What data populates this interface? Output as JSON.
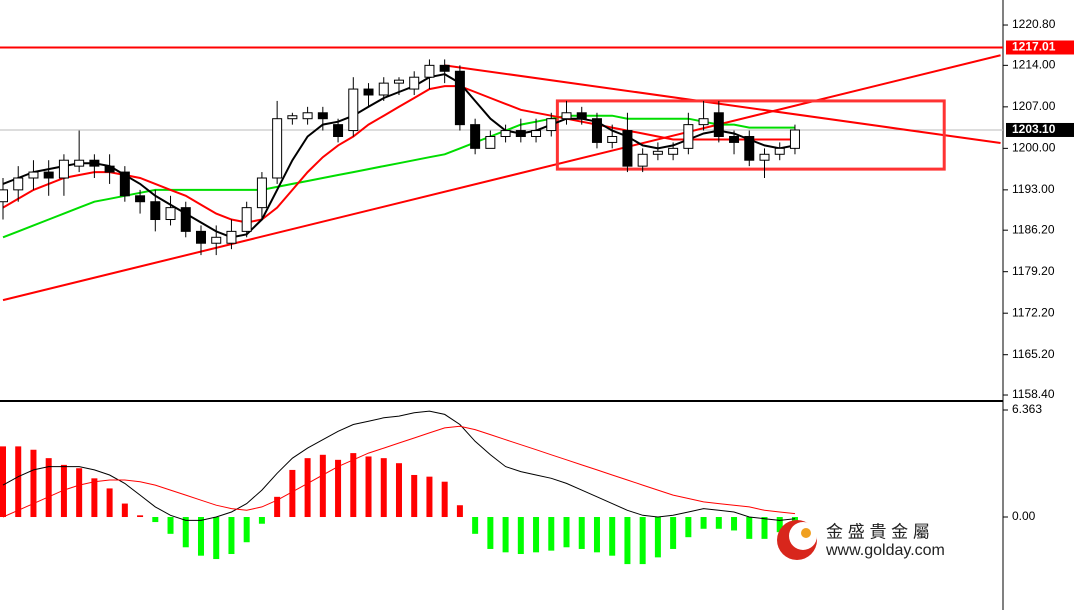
{
  "chart_data": [
    {
      "type": "candlestick",
      "open": [
        1191,
        1193,
        1195,
        1196,
        1195,
        1197,
        1198,
        1197,
        1196,
        1192,
        1191,
        1188,
        1190,
        1186,
        1184,
        1184,
        1186,
        1190,
        1195,
        1205,
        1205,
        1206,
        1204,
        1203,
        1210,
        1209,
        1211,
        1210,
        1212,
        1214,
        1213,
        1204,
        1200,
        1202,
        1203,
        1202,
        1203,
        1205,
        1206,
        1205,
        1201,
        1203,
        1197,
        1199,
        1199,
        1200,
        1204,
        1206,
        1202,
        1202,
        1198,
        1199,
        1200
      ],
      "high": [
        1195,
        1197,
        1198,
        1198,
        1199,
        1203,
        1199,
        1199,
        1197,
        1193,
        1193,
        1192,
        1191,
        1187,
        1187,
        1188,
        1191,
        1196,
        1208,
        1206,
        1207,
        1207,
        1205,
        1212,
        1211,
        1212,
        1212,
        1213,
        1215,
        1215,
        1214,
        1205,
        1203,
        1204,
        1205,
        1205,
        1206,
        1208,
        1207,
        1206,
        1204,
        1206,
        1200,
        1201,
        1201,
        1206,
        1208,
        1208,
        1203,
        1203,
        1200,
        1201,
        1204
      ],
      "low": [
        1188,
        1191,
        1193,
        1192,
        1192,
        1196,
        1195,
        1194,
        1191,
        1189,
        1186,
        1187,
        1185,
        1182,
        1182,
        1183,
        1185,
        1188,
        1194,
        1204,
        1204,
        1203,
        1201,
        1202,
        1207,
        1208,
        1209,
        1209,
        1210,
        1211,
        1203,
        1199,
        1200,
        1201,
        1201,
        1201,
        1202,
        1204,
        1204,
        1200,
        1200,
        1196,
        1196,
        1198,
        1198,
        1199,
        1203,
        1201,
        1199,
        1197,
        1195,
        1198,
        1199
      ],
      "close": [
        1193,
        1195,
        1196,
        1195,
        1198,
        1198,
        1197,
        1196,
        1192,
        1191,
        1188,
        1190,
        1186,
        1184,
        1185,
        1186,
        1190,
        1195,
        1205,
        1205.5,
        1206,
        1205,
        1202,
        1210,
        1209,
        1211,
        1211.5,
        1212,
        1214,
        1213,
        1204,
        1200,
        1202,
        1203,
        1202,
        1203,
        1205,
        1206,
        1205,
        1201,
        1202,
        1197,
        1199,
        1199.5,
        1200,
        1204,
        1205,
        1202,
        1201,
        1198,
        1199,
        1200,
        1203.1
      ],
      "lines": [
        {
          "color": "#000000",
          "values": [
            1194,
            1195,
            1196,
            1196.5,
            1197,
            1197.5,
            1197.5,
            1197,
            1195.5,
            1194,
            1192,
            1190.5,
            1189,
            1187.5,
            1186,
            1185,
            1185.5,
            1188,
            1193,
            1198,
            1202,
            1204,
            1204.5,
            1205.5,
            1207,
            1208.5,
            1209.5,
            1210.5,
            1212,
            1212.5,
            1211,
            1208,
            1205,
            1203,
            1202.5,
            1203,
            1204,
            1205,
            1205,
            1204.5,
            1203,
            1202,
            1200.5,
            1200,
            1200.5,
            1201.5,
            1202.5,
            1203,
            1202.5,
            1201.5,
            1200.5,
            1200,
            1200.5
          ]
        },
        {
          "color": "#ff0000",
          "values": [
            1190,
            1191.5,
            1193,
            1194,
            1195,
            1195.5,
            1196,
            1196,
            1195.5,
            1195,
            1194,
            1193,
            1192,
            1190.5,
            1189,
            1188,
            1187.5,
            1188,
            1190,
            1193,
            1196,
            1198.5,
            1200.5,
            1202,
            1204,
            1205.5,
            1207,
            1208.5,
            1210,
            1210.5,
            1210.5,
            1209.5,
            1208.5,
            1207.5,
            1206.5,
            1206,
            1205.5,
            1205,
            1204.5,
            1204,
            1203.5,
            1203,
            1202.5,
            1202,
            1201.5,
            1201.5,
            1201.5,
            1201.5,
            1201.5,
            1201.5,
            1201.5,
            1201.5,
            1201.5
          ]
        },
        {
          "color": "#00dd00",
          "values": [
            1185,
            1186,
            1187,
            1188,
            1189,
            1190,
            1191,
            1191.5,
            1192,
            1192.5,
            1193,
            1193,
            1193,
            1193,
            1193,
            1193,
            1193,
            1193,
            1193.5,
            1194,
            1194.5,
            1195,
            1195.5,
            1196,
            1196.5,
            1197,
            1197.5,
            1198,
            1198.5,
            1199,
            1200,
            1201,
            1202,
            1203,
            1204,
            1204.5,
            1205,
            1205.5,
            1205.5,
            1205.5,
            1205.5,
            1205,
            1205,
            1205,
            1205,
            1205,
            1204.5,
            1204,
            1204,
            1203.5,
            1203.5,
            1203.5,
            1203.5
          ]
        }
      ],
      "trendlines": [
        {
          "color": "#ff0000",
          "x": [
            0,
            65.5
          ],
          "y": [
            1174.4,
            1215.7
          ]
        },
        {
          "color": "#ff0000",
          "x": [
            29,
            65.5
          ],
          "y": [
            1214.0,
            1200.9
          ]
        }
      ],
      "box": {
        "color": "#ff3333",
        "x": [
          36.4,
          61.8
        ],
        "y": [
          1196.5,
          1208.0
        ]
      },
      "price_markers": [
        {
          "value": 1217.01,
          "label": "1217.01",
          "color": "#ff0000"
        },
        {
          "value": 1203.1,
          "label": "1203.10",
          "color": "#000000"
        }
      ],
      "ylim": [
        1157.56,
        1225.02
      ],
      "yticks": [
        {
          "value": 1220.8,
          "label": "1220.80"
        },
        {
          "value": 1214,
          "label": "1214.00"
        },
        {
          "value": 1207,
          "label": "1207.00"
        },
        {
          "value": 1200,
          "label": "1200.00"
        },
        {
          "value": 1193,
          "label": "1193.00"
        },
        {
          "value": 1186.2,
          "label": "1186.20"
        },
        {
          "value": 1179.2,
          "label": "1179.20"
        },
        {
          "value": 1172.2,
          "label": "1172.20"
        },
        {
          "value": 1165.2,
          "label": "1165.20"
        },
        {
          "value": 1158.4,
          "label": "1158.40"
        }
      ]
    },
    {
      "type": "macd",
      "histogram": [
        4.2,
        4.2,
        4.0,
        3.5,
        3.1,
        2.9,
        2.3,
        1.7,
        0.8,
        0.1,
        -0.3,
        -1.0,
        -1.8,
        -2.3,
        -2.5,
        -2.2,
        -1.5,
        -0.4,
        1.2,
        2.8,
        3.5,
        3.7,
        3.4,
        3.8,
        3.6,
        3.5,
        3.2,
        2.5,
        2.4,
        2.1,
        0.7,
        -1.0,
        -1.9,
        -2.1,
        -2.2,
        -2.1,
        -2.0,
        -1.8,
        -1.9,
        -2.1,
        -2.3,
        -2.8,
        -2.8,
        -2.4,
        -1.9,
        -1.2,
        -0.7,
        -0.7,
        -0.8,
        -1.3,
        -1.3,
        -0.9,
        -0.5
      ],
      "positive_color": "#ff0000",
      "negative_color": "#00ff00",
      "lines": [
        {
          "color": "#000000",
          "values": [
            1.9,
            2.4,
            2.8,
            3.0,
            3.0,
            3.0,
            2.8,
            2.5,
            2.0,
            1.3,
            0.6,
            0.1,
            -0.2,
            -0.2,
            0.0,
            0.3,
            0.8,
            1.6,
            2.6,
            3.5,
            4.1,
            4.6,
            5.1,
            5.5,
            5.7,
            5.9,
            6.0,
            6.2,
            6.3,
            6.1,
            5.5,
            4.5,
            3.7,
            3.0,
            2.7,
            2.5,
            2.3,
            2.0,
            1.6,
            1.2,
            0.8,
            0.4,
            0.1,
            0.0,
            0.1,
            0.3,
            0.5,
            0.4,
            0.3,
            0.0,
            -0.1,
            -0.2,
            -0.1
          ]
        },
        {
          "color": "#ff0000",
          "values": [
            0.0,
            0.4,
            0.8,
            1.2,
            1.6,
            1.9,
            2.1,
            2.2,
            2.2,
            2.1,
            1.9,
            1.6,
            1.3,
            1.0,
            0.7,
            0.5,
            0.4,
            0.6,
            1.0,
            1.5,
            2.0,
            2.5,
            3.0,
            3.4,
            3.8,
            4.1,
            4.4,
            4.7,
            5.0,
            5.3,
            5.4,
            5.2,
            4.9,
            4.6,
            4.3,
            4.0,
            3.7,
            3.4,
            3.1,
            2.8,
            2.5,
            2.2,
            1.9,
            1.6,
            1.3,
            1.1,
            0.9,
            0.8,
            0.7,
            0.6,
            0.4,
            0.3,
            0.2
          ]
        }
      ],
      "ylim": [
        -5.53,
        6.78
      ],
      "yticks": [
        6.363,
        {
          "value": 0,
          "label": "0.00"
        }
      ]
    }
  ],
  "watermark": {
    "name": "金 盛 貴 金 屬",
    "url": "www.golday.com"
  }
}
